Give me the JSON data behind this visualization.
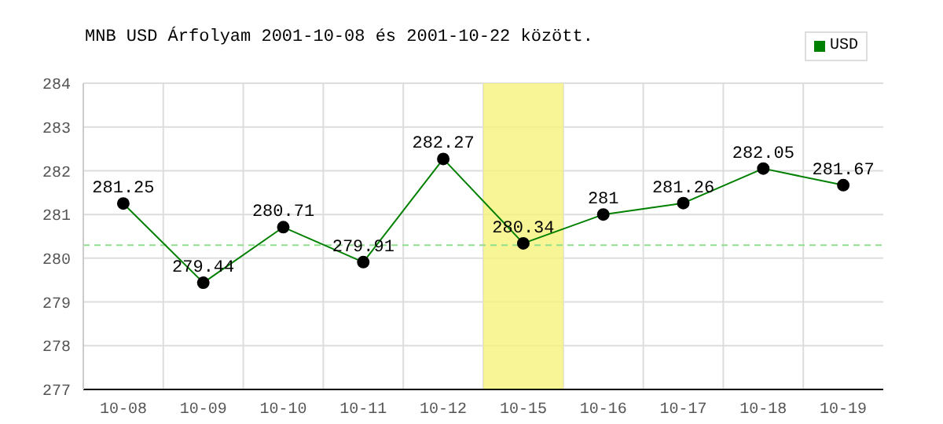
{
  "chart_data": {
    "type": "line",
    "title": "MNB USD Árfolyam 2001-10-08 és 2001-10-22 között.",
    "categories": [
      "10-08",
      "10-09",
      "10-10",
      "10-11",
      "10-12",
      "10-15",
      "10-16",
      "10-17",
      "10-18",
      "10-19"
    ],
    "series": [
      {
        "name": "USD",
        "color": "#008000",
        "values": [
          281.25,
          279.44,
          280.71,
          279.91,
          282.27,
          280.34,
          281,
          281.26,
          282.05,
          281.67
        ]
      }
    ],
    "ylim": [
      277,
      284
    ],
    "yticks": [
      277,
      278,
      279,
      280,
      281,
      282,
      283,
      284
    ],
    "grid": true,
    "legend": "top right",
    "marker": "circle",
    "line_style": "solid",
    "data_labels": true,
    "ref_lines": [
      {
        "axis": "y",
        "value": 280.3,
        "color": "#90e090",
        "line_style": "dashed"
      }
    ],
    "bands": [
      {
        "axis": "x",
        "from": "10-15",
        "to": "10-15",
        "color": "#f5f27a"
      }
    ]
  }
}
